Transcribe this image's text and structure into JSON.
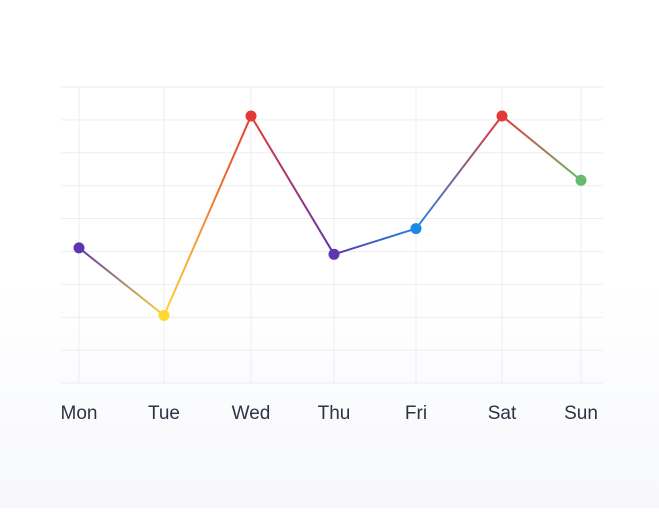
{
  "chart_data": {
    "type": "line",
    "title": "",
    "xlabel": "",
    "ylabel": "",
    "categories": [
      "Mon",
      "Tue",
      "Wed",
      "Thu",
      "Fri",
      "Sat",
      "Sun"
    ],
    "series": [
      {
        "values": [
          42,
          21,
          83,
          40,
          48,
          83,
          63
        ],
        "point_colors": [
          "#5e35b1",
          "#fdd835",
          "#e53935",
          "#5e35b1",
          "#1e88e5",
          "#e53935",
          "#66bb6a"
        ]
      }
    ],
    "ylim": [
      0,
      92
    ],
    "grid": true,
    "y_tick_labels_visible": false,
    "legend": "none"
  }
}
